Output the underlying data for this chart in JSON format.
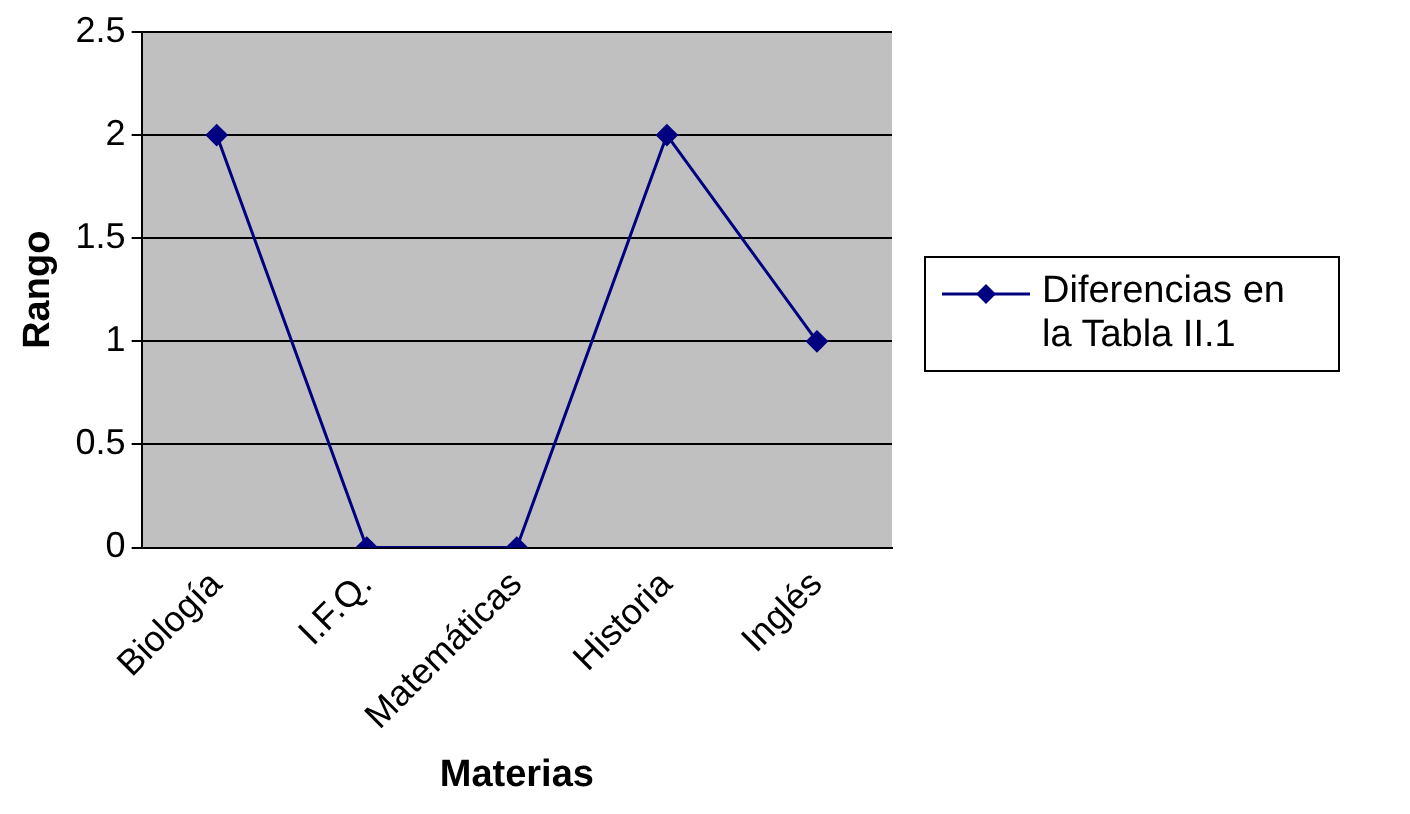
{
  "chart_data": {
    "type": "line",
    "xlabel": "Materias",
    "ylabel": "Rango",
    "categories": [
      "Biología",
      "I.F.Q.",
      "Matemáticas",
      "Historia",
      "Inglés"
    ],
    "series": [
      {
        "name": "Diferencias en la Tabla II.1",
        "color": "#000080",
        "values": [
          2,
          0,
          0,
          2,
          1
        ]
      }
    ],
    "ylim": [
      0,
      2.5
    ],
    "yticks": [
      0,
      0.5,
      1,
      1.5,
      2,
      2.5
    ],
    "grid": "y",
    "legend": "right",
    "marker": "diamond",
    "line_style": "solid"
  }
}
